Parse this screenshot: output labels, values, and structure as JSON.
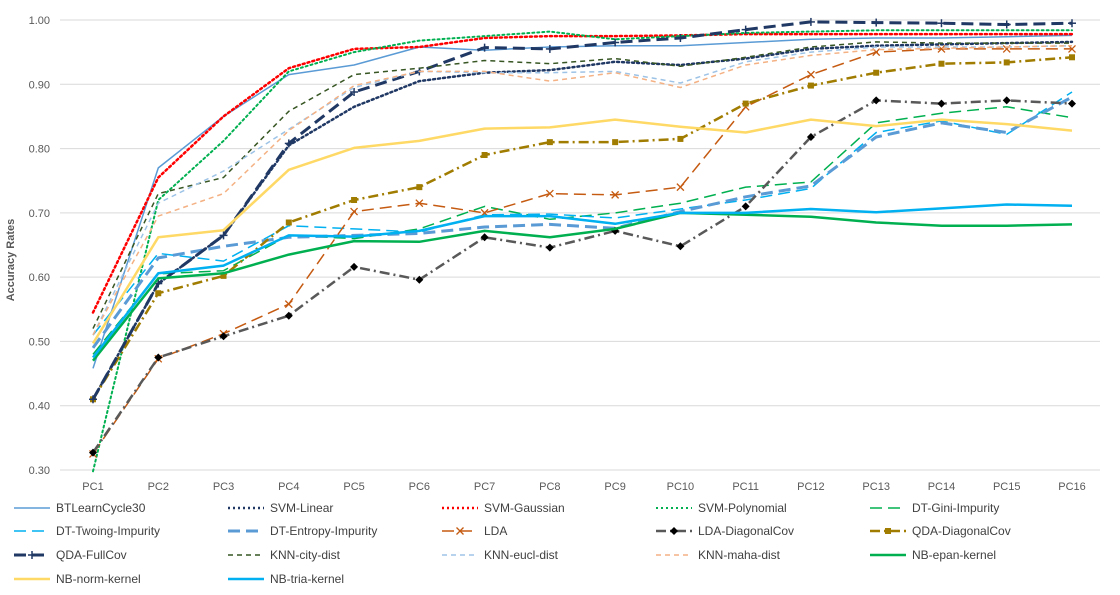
{
  "chart_data": {
    "type": "line",
    "title": "",
    "xlabel": "",
    "ylabel": "Accuracy Rates",
    "ylim": [
      0.3,
      1.0
    ],
    "yticks": [
      "0.30",
      "0.40",
      "0.50",
      "0.60",
      "0.70",
      "0.80",
      "0.90",
      "1.00"
    ],
    "grid": true,
    "legend": "bottom",
    "categories": [
      "PC1",
      "PC2",
      "PC3",
      "PC4",
      "PC5",
      "PC6",
      "PC7",
      "PC8",
      "PC9",
      "PC10",
      "PC11",
      "PC12",
      "PC13",
      "PC14",
      "PC15",
      "PC16"
    ],
    "series": [
      {
        "name": "BTLearnCycle30",
        "color": "#5B9BD5",
        "dash": "solid",
        "width": 1.5,
        "marker": "none",
        "values": [
          0.458,
          0.77,
          0.85,
          0.915,
          0.93,
          0.958,
          0.953,
          0.958,
          0.96,
          0.96,
          0.965,
          0.97,
          0.972,
          0.972,
          0.974,
          0.976
        ]
      },
      {
        "name": "SVM-Linear",
        "color": "#203864",
        "dash": "dot",
        "width": 2.5,
        "marker": "none",
        "values": [
          0.41,
          0.59,
          0.665,
          0.805,
          0.865,
          0.905,
          0.918,
          0.922,
          0.935,
          0.93,
          0.94,
          0.955,
          0.96,
          0.962,
          0.964,
          0.966
        ]
      },
      {
        "name": "SVM-Gaussian",
        "color": "#FF0000",
        "dash": "dot",
        "width": 2.5,
        "marker": "none",
        "values": [
          0.545,
          0.755,
          0.85,
          0.925,
          0.955,
          0.958,
          0.972,
          0.975,
          0.975,
          0.976,
          0.978,
          0.978,
          0.978,
          0.978,
          0.978,
          0.978
        ]
      },
      {
        "name": "SVM-Polynomial",
        "color": "#00B050",
        "dash": "dot",
        "width": 2,
        "marker": "none",
        "values": [
          0.298,
          0.72,
          0.812,
          0.92,
          0.95,
          0.968,
          0.975,
          0.982,
          0.97,
          0.975,
          0.98,
          0.982,
          0.984,
          0.984,
          0.984,
          0.984
        ]
      },
      {
        "name": "DT-Gini-Impurity",
        "color": "#00B050",
        "dash": "longdash",
        "width": 1.5,
        "marker": "none",
        "values": [
          0.48,
          0.605,
          0.61,
          0.665,
          0.66,
          0.675,
          0.71,
          0.69,
          0.7,
          0.715,
          0.74,
          0.748,
          0.84,
          0.855,
          0.865,
          0.848
        ]
      },
      {
        "name": "DT-Twoing-Impurity",
        "color": "#00B0F0",
        "dash": "longdash",
        "width": 1.5,
        "marker": "none",
        "values": [
          0.51,
          0.637,
          0.625,
          0.68,
          0.675,
          0.67,
          0.697,
          0.698,
          0.692,
          0.706,
          0.72,
          0.738,
          0.825,
          0.843,
          0.822,
          0.888
        ]
      },
      {
        "name": "DT-Entropy-Impurity",
        "color": "#5B9BD5",
        "dash": "longdash",
        "width": 3,
        "marker": "none",
        "values": [
          0.49,
          0.63,
          0.648,
          0.662,
          0.665,
          0.668,
          0.678,
          0.682,
          0.676,
          0.702,
          0.725,
          0.742,
          0.818,
          0.84,
          0.825,
          0.88
        ]
      },
      {
        "name": "LDA",
        "color": "#C55A11",
        "dash": "longdash",
        "width": 1.5,
        "marker": "x",
        "values": [
          0.325,
          0.473,
          0.512,
          0.558,
          0.702,
          0.715,
          0.7,
          0.73,
          0.728,
          0.74,
          0.865,
          0.915,
          0.95,
          0.955,
          0.955,
          0.955
        ]
      },
      {
        "name": "LDA-DiagonalCov",
        "color": "#595959",
        "dash": "dashdot",
        "width": 2.5,
        "marker": "diamond",
        "values": [
          0.327,
          0.475,
          0.508,
          0.54,
          0.616,
          0.596,
          0.662,
          0.646,
          0.672,
          0.648,
          0.71,
          0.818,
          0.875,
          0.87,
          0.875,
          0.87
        ]
      },
      {
        "name": "QDA-DiagonalCov",
        "color": "#A07C00",
        "dash": "dashdot",
        "width": 2.5,
        "marker": "square",
        "values": [
          0.41,
          0.575,
          0.602,
          0.685,
          0.72,
          0.74,
          0.79,
          0.81,
          0.81,
          0.815,
          0.87,
          0.898,
          0.918,
          0.932,
          0.934,
          0.942
        ]
      },
      {
        "name": "QDA-FullCov",
        "color": "#203864",
        "dash": "longdash",
        "width": 3,
        "marker": "plus",
        "values": [
          0.41,
          0.59,
          0.665,
          0.808,
          0.888,
          0.92,
          0.957,
          0.955,
          0.965,
          0.972,
          0.985,
          0.997,
          0.996,
          0.995,
          0.993,
          0.995
        ]
      },
      {
        "name": "KNN-city-dist",
        "color": "#375623",
        "dash": "dash",
        "width": 1.5,
        "marker": "none",
        "values": [
          0.52,
          0.73,
          0.755,
          0.858,
          0.915,
          0.925,
          0.937,
          0.932,
          0.94,
          0.928,
          0.942,
          0.958,
          0.966,
          0.964,
          0.964,
          0.964
        ]
      },
      {
        "name": "KNN-eucl-dist",
        "color": "#9DC3E6",
        "dash": "dash",
        "width": 1.5,
        "marker": "none",
        "values": [
          0.51,
          0.715,
          0.765,
          0.83,
          0.895,
          0.92,
          0.918,
          0.918,
          0.92,
          0.902,
          0.935,
          0.95,
          0.958,
          0.958,
          0.958,
          0.96
        ]
      },
      {
        "name": "KNN-maha-dist",
        "color": "#F4B183",
        "dash": "dash",
        "width": 1.5,
        "marker": "none",
        "values": [
          0.51,
          0.695,
          0.73,
          0.828,
          0.898,
          0.92,
          0.92,
          0.905,
          0.918,
          0.895,
          0.93,
          0.945,
          0.954,
          0.956,
          0.958,
          0.96
        ]
      },
      {
        "name": "NB-epan-kernel",
        "color": "#00B050",
        "dash": "solid",
        "width": 2.5,
        "marker": "none",
        "values": [
          0.47,
          0.598,
          0.606,
          0.635,
          0.656,
          0.655,
          0.672,
          0.662,
          0.675,
          0.7,
          0.697,
          0.694,
          0.685,
          0.68,
          0.68,
          0.682
        ]
      },
      {
        "name": "NB-norm-kernel",
        "color": "#FFD966",
        "dash": "solid",
        "width": 2.5,
        "marker": "none",
        "values": [
          0.497,
          0.662,
          0.673,
          0.767,
          0.801,
          0.812,
          0.831,
          0.833,
          0.845,
          0.834,
          0.825,
          0.845,
          0.835,
          0.845,
          0.838,
          0.828
        ]
      },
      {
        "name": "NB-tria-kernel",
        "color": "#00B0F0",
        "dash": "solid",
        "width": 2.5,
        "marker": "none",
        "values": [
          0.475,
          0.606,
          0.618,
          0.665,
          0.663,
          0.672,
          0.695,
          0.695,
          0.683,
          0.7,
          0.7,
          0.706,
          0.701,
          0.707,
          0.713,
          0.711
        ]
      }
    ]
  }
}
